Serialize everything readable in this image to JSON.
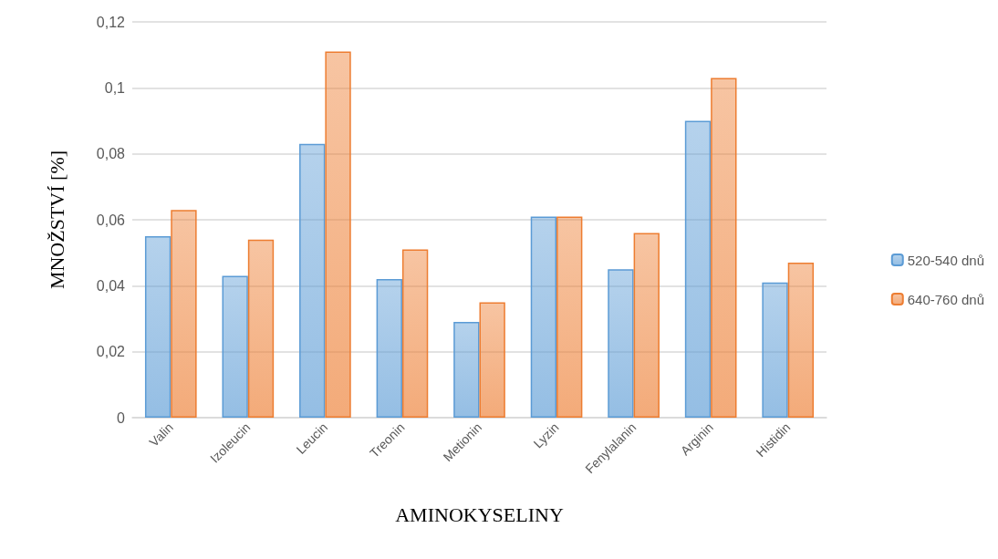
{
  "chart_data": {
    "type": "bar",
    "xlabel": "AMINOKYSELINY",
    "ylabel": "MNOŽSTVÍ [%]",
    "categories": [
      "Valin",
      "Izoleucin",
      "Leucin",
      "Treonin",
      "Metionin",
      "Lyzin",
      "Fenylalanin",
      "Arginin",
      "Histidin"
    ],
    "series": [
      {
        "name": "520-540 dnů",
        "color": "#5b9bd5",
        "values": [
          0.055,
          0.043,
          0.083,
          0.042,
          0.029,
          0.061,
          0.045,
          0.09,
          0.041
        ]
      },
      {
        "name": "640-760 dnů",
        "color": "#ed7d31",
        "values": [
          0.063,
          0.054,
          0.111,
          0.051,
          0.035,
          0.061,
          0.056,
          0.103,
          0.047
        ]
      }
    ],
    "ylim": [
      0,
      0.12
    ],
    "yticks": [
      {
        "value": 0,
        "label": "0"
      },
      {
        "value": 0.02,
        "label": "0,02"
      },
      {
        "value": 0.04,
        "label": "0,04"
      },
      {
        "value": 0.06,
        "label": "0,06"
      },
      {
        "value": 0.08,
        "label": "0,08"
      },
      {
        "value": 0.1,
        "label": "0,1"
      },
      {
        "value": 0.12,
        "label": "0,12"
      }
    ],
    "grid": "y",
    "legend": "right"
  }
}
